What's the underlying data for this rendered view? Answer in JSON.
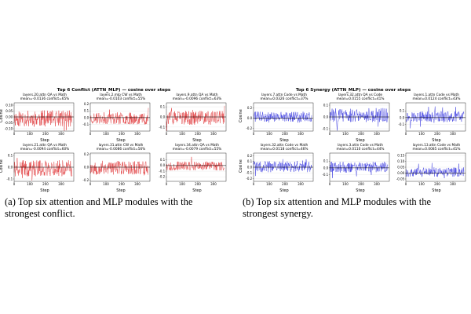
{
  "figures": [
    {
      "id": "a",
      "title": "Top 6 Conflict (ATTN_MLP) — cosine over steps",
      "color": "#e0383a",
      "caption": "(a) Top six attention and MLP modules with the strongest conflict.",
      "chart_data": [
        {
          "type": "line",
          "title_line1": "layers.20.attn  QA vs Math",
          "title_line2": "mean=-0.0136  conflict=65%",
          "xlabel": "Step",
          "ylabel": "Cosine",
          "ylim": [
            -0.12,
            0.12
          ],
          "yticks": [
            "0.10",
            "0.05",
            "0.00",
            "-0.05",
            "-0.10"
          ],
          "ytick_values": [
            0.1,
            0.05,
            0,
            -0.05,
            -0.1
          ],
          "xticks": [
            "0",
            "100",
            "200",
            "300"
          ],
          "xtick_values": [
            0,
            100,
            200,
            300
          ],
          "xmax": 380,
          "seed": 11,
          "amp": 0.07,
          "mean": -0.0136
        },
        {
          "type": "line",
          "title_line1": "layers.2.mlp  CW vs Math",
          "title_line2": "mean=-0.0103  conflict=55%",
          "xlabel": "Step",
          "ylabel": "",
          "ylim": [
            -0.2,
            0.22
          ],
          "yticks": [
            "0.2",
            "0.1",
            "0.0",
            "-0.1"
          ],
          "ytick_values": [
            0.2,
            0.1,
            0,
            -0.1
          ],
          "xticks": [
            "0",
            "100",
            "200",
            "300"
          ],
          "xtick_values": [
            0,
            100,
            200,
            300
          ],
          "xmax": 380,
          "seed": 23,
          "amp": 0.09,
          "mean": -0.0103
        },
        {
          "type": "line",
          "title_line1": "layers.9.attn  QA vs Math",
          "title_line2": "mean=-0.0096  conflict=63%",
          "xlabel": "Step",
          "ylabel": "",
          "ylim": [
            -0.14,
            0.14
          ],
          "yticks": [
            "0.1",
            "0.0",
            "-0.1"
          ],
          "ytick_values": [
            0.1,
            0,
            -0.1
          ],
          "xticks": [
            "0",
            "100",
            "200",
            "300"
          ],
          "xtick_values": [
            0,
            100,
            200,
            300
          ],
          "xmax": 380,
          "seed": 37,
          "amp": 0.07,
          "mean": -0.0096
        },
        {
          "type": "line",
          "title_line1": "layers.21.attn  QA vs Math",
          "title_line2": "mean=-0.0094  conflict=60%",
          "xlabel": "Step",
          "ylabel": "Cosine",
          "ylim": [
            -0.12,
            0.12
          ],
          "yticks": [
            "0.1",
            "0.0",
            "-0.1"
          ],
          "ytick_values": [
            0.1,
            0,
            -0.1
          ],
          "xticks": [
            "0",
            "100",
            "200",
            "300"
          ],
          "xtick_values": [
            0,
            100,
            200,
            300
          ],
          "xmax": 380,
          "seed": 41,
          "amp": 0.07,
          "mean": -0.0094
        },
        {
          "type": "line",
          "title_line1": "layers.31.attn  CW vs Math",
          "title_line2": "mean=-0.0086  conflict=56%",
          "xlabel": "Step",
          "ylabel": "",
          "ylim": [
            -0.22,
            0.22
          ],
          "yticks": [
            "0.2",
            "0.0",
            "-0.2"
          ],
          "ytick_values": [
            0.2,
            0,
            -0.2
          ],
          "xticks": [
            "0",
            "100",
            "200",
            "300"
          ],
          "xtick_values": [
            0,
            100,
            200,
            300
          ],
          "xmax": 380,
          "seed": 53,
          "amp": 0.11,
          "mean": -0.0086
        },
        {
          "type": "line",
          "title_line1": "layers.34.attn  QA vs Math",
          "title_line2": "mean=-0.0079  conflict=55%",
          "xlabel": "Step",
          "ylabel": "",
          "ylim": [
            -0.28,
            0.22
          ],
          "yticks": [
            "0.1",
            "0.0",
            "-0.1",
            "-0.2"
          ],
          "ytick_values": [
            0.1,
            0,
            -0.1,
            -0.2
          ],
          "xticks": [
            "0",
            "100",
            "200",
            "300"
          ],
          "xtick_values": [
            0,
            100,
            200,
            300
          ],
          "xmax": 380,
          "seed": 67,
          "amp": 0.08,
          "mean": -0.0079
        }
      ]
    },
    {
      "id": "b",
      "title": "Top 6 Synergy (ATTN_MLP) — cosine over steps",
      "color": "#3a3adf",
      "caption": "(b) Top six attention and MLP modules with the strongest synergy.",
      "chart_data": [
        {
          "type": "line",
          "title_line1": "layers.7.attn  Code vs Math",
          "title_line2": "mean=0.0326  conflict=37%",
          "xlabel": "Step",
          "ylabel": "Cosine",
          "ylim": [
            -0.25,
            0.3
          ],
          "yticks": [
            "0.2",
            "0.0",
            "-0.2"
          ],
          "ytick_values": [
            0.2,
            0,
            -0.2
          ],
          "xticks": [
            "0",
            "100",
            "200",
            "300"
          ],
          "xtick_values": [
            0,
            100,
            200,
            300
          ],
          "xmax": 380,
          "seed": 71,
          "amp": 0.1,
          "mean": 0.0326
        },
        {
          "type": "line",
          "title_line1": "layers.32.attn  QA vs Code",
          "title_line2": "mean=0.0155  conflict=41%",
          "xlabel": "Step",
          "ylabel": "",
          "ylim": [
            -0.12,
            0.12
          ],
          "yticks": [
            "0.1",
            "0.0",
            "-0.1"
          ],
          "ytick_values": [
            0.1,
            0,
            -0.1
          ],
          "xticks": [
            "0",
            "100",
            "200",
            "300"
          ],
          "xtick_values": [
            0,
            100,
            200,
            300
          ],
          "xmax": 380,
          "seed": 83,
          "amp": 0.06,
          "mean": 0.0155
        },
        {
          "type": "line",
          "title_line1": "layers.1.attn  Code vs Math",
          "title_line2": "mean=0.0124  conflict=43%",
          "xlabel": "Step",
          "ylabel": "",
          "ylim": [
            -0.2,
            0.22
          ],
          "yticks": [
            "0.1",
            "0.0",
            "-0.1"
          ],
          "ytick_values": [
            0.1,
            0,
            -0.1
          ],
          "xticks": [
            "0",
            "100",
            "200",
            "300"
          ],
          "xtick_values": [
            0,
            100,
            200,
            300
          ],
          "xmax": 380,
          "seed": 97,
          "amp": 0.08,
          "mean": 0.0124
        },
        {
          "type": "line",
          "title_line1": "layers.32.attn  Code vs Math",
          "title_line2": "mean=0.0118  conflict=46%",
          "xlabel": "Step",
          "ylabel": "Cosine",
          "ylim": [
            -0.25,
            0.25
          ],
          "yticks": [
            "0.2",
            "0.1",
            "0.0",
            "-0.1",
            "-0.2"
          ],
          "ytick_values": [
            0.2,
            0.1,
            0,
            -0.1,
            -0.2
          ],
          "xticks": [
            "0",
            "100",
            "200",
            "300"
          ],
          "xtick_values": [
            0,
            100,
            200,
            300
          ],
          "xmax": 380,
          "seed": 101,
          "amp": 0.1,
          "mean": 0.0118
        },
        {
          "type": "line",
          "title_line1": "layers.3.attn  Code vs Math",
          "title_line2": "mean=0.0110  conflict=44%",
          "xlabel": "Step",
          "ylabel": "",
          "ylim": [
            -0.2,
            0.22
          ],
          "yticks": [
            "0.1",
            "0.0",
            "-0.1"
          ],
          "ytick_values": [
            0.1,
            0,
            -0.1
          ],
          "xticks": [
            "0",
            "100",
            "200",
            "300"
          ],
          "xtick_values": [
            0,
            100,
            200,
            300
          ],
          "xmax": 380,
          "seed": 113,
          "amp": 0.08,
          "mean": 0.011
        },
        {
          "type": "line",
          "title_line1": "layers.13.attn  Code vs Math",
          "title_line2": "mean=0.0085  conflict=41%",
          "xlabel": "Step",
          "ylabel": "",
          "ylim": [
            -0.07,
            0.17
          ],
          "yticks": [
            "0.15",
            "0.10",
            "0.05",
            "0.00",
            "-0.05"
          ],
          "ytick_values": [
            0.15,
            0.1,
            0.05,
            0,
            -0.05
          ],
          "xticks": [
            "0",
            "100",
            "200",
            "300"
          ],
          "xtick_values": [
            0,
            100,
            200,
            300
          ],
          "xmax": 380,
          "seed": 127,
          "amp": 0.04,
          "mean": 0.0085
        }
      ]
    }
  ]
}
